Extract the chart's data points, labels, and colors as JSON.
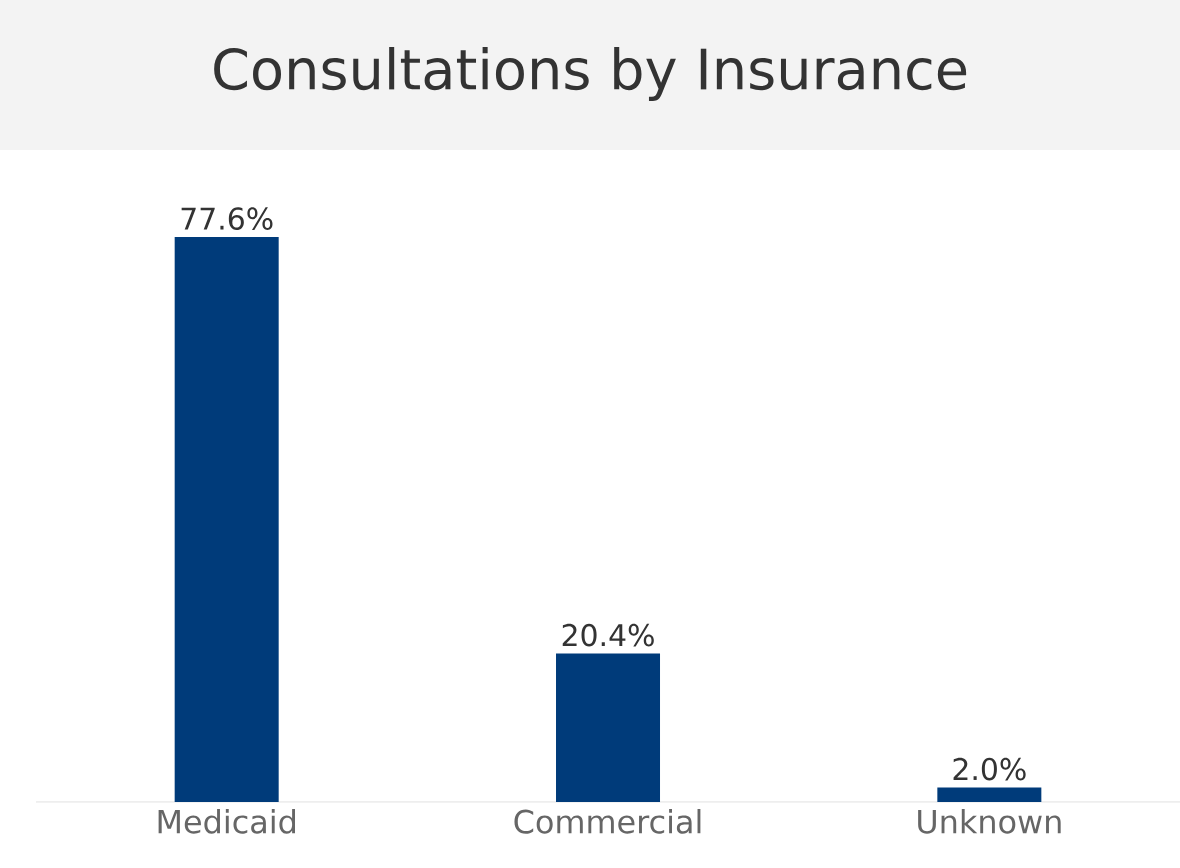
{
  "chart_data": {
    "type": "bar",
    "title": "Consultations by Insurance",
    "categories": [
      "Medicaid",
      "Commercial",
      "Unknown"
    ],
    "values": [
      77.6,
      20.4,
      2.0
    ],
    "value_labels": [
      "77.6%",
      "20.4%",
      "2.0%"
    ],
    "color": "#003b7a"
  }
}
